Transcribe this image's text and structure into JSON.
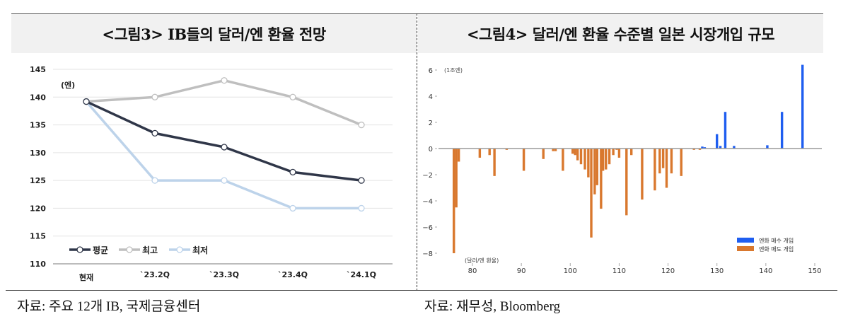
{
  "figure3": {
    "title": "<그림3> IB들의 달러/엔 환율 전망",
    "source": "자료: 주요 12개 IB, 국제금융센터"
  },
  "figure4": {
    "title": "<그림4> 달러/엔 환율 수준별 일본 시장개입 규모",
    "source": "자료: 재무성, Bloomberg"
  },
  "colors": {
    "avg": "#2f3648",
    "high": "#bfbfbf",
    "low": "#bdd3ea",
    "buy": "#1f5ef0",
    "sell": "#d9782e"
  },
  "chart_data": [
    {
      "type": "line",
      "title": "<그림3> IB들의 달러/엔 환율 전망",
      "ylabel": "(엔)",
      "xlabel": "",
      "categories": [
        "현재",
        "`23.2Q",
        "`23.3Q",
        "`23.4Q",
        "`24.1Q"
      ],
      "ylim": [
        110,
        145
      ],
      "yticks": [
        110,
        115,
        120,
        125,
        130,
        135,
        140,
        145
      ],
      "grid": true,
      "legend_position": "lower-left",
      "series": [
        {
          "name": "평균",
          "values": [
            139.2,
            133.5,
            131,
            126.5,
            125
          ]
        },
        {
          "name": "최고",
          "values": [
            139.2,
            140,
            143,
            140,
            135
          ]
        },
        {
          "name": "최저",
          "values": [
            139.2,
            125,
            125,
            120,
            120
          ]
        }
      ]
    },
    {
      "type": "bar",
      "title": "<그림4> 달러/엔 환율 수준별 일본 시장개입 규모",
      "ylabel": "(1조엔)",
      "xlabel": "(달러/엔 환율)",
      "xlim": [
        76,
        152
      ],
      "xticks": [
        80,
        90,
        100,
        110,
        120,
        130,
        140,
        150
      ],
      "ylim": [
        -8,
        6.5
      ],
      "yticks": [
        -8,
        -6,
        -4,
        -2,
        0,
        2,
        4,
        6
      ],
      "grid": false,
      "legend_position": "lower-right",
      "series": [
        {
          "name": "엔화 매수 개입",
          "x": [
            127,
            127.5,
            130,
            130.7,
            131.7,
            133.5,
            140.3,
            143.3,
            147.5
          ],
          "values": [
            0.15,
            0.1,
            1.1,
            0.2,
            2.8,
            0.2,
            0.25,
            2.8,
            6.4
          ]
        },
        {
          "name": "엔화 매도 개입",
          "x": [
            76.2,
            76.7,
            77.2,
            81.5,
            83.5,
            84.5,
            87,
            90.5,
            94.5,
            96.5,
            97,
            98.5,
            100.5,
            101,
            101.5,
            102.2,
            103,
            103.7,
            104.3,
            105,
            105.5,
            106.3,
            106.7,
            107.3,
            108,
            108.8,
            109.5,
            110,
            111.5,
            112.5,
            114.7,
            117.3,
            118.3,
            119,
            119.7,
            120.7,
            122.7,
            125.3,
            126.5
          ],
          "values": [
            -8.0,
            -4.5,
            -1.0,
            -0.7,
            -0.5,
            -2.1,
            -0.1,
            -1.7,
            -0.8,
            -0.2,
            -0.2,
            -1.7,
            -0.4,
            -0.5,
            -0.9,
            -1.2,
            -1.6,
            -2.2,
            -6.8,
            -3.5,
            -2.8,
            -4.6,
            -1.7,
            -1.6,
            -1.2,
            -0.5,
            -0.1,
            -0.7,
            -5.1,
            -0.5,
            -3.9,
            -3.2,
            -1.9,
            -1.5,
            -3.0,
            -1.9,
            -2.1,
            -0.1,
            -0.1
          ]
        }
      ]
    }
  ]
}
